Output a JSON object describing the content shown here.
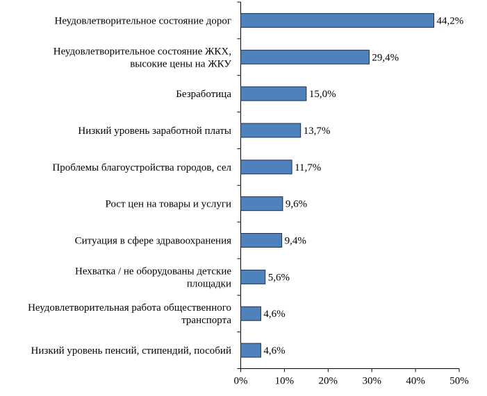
{
  "chart_data": {
    "type": "bar",
    "orientation": "horizontal",
    "categories": [
      [
        "Неудовлетворительное состояние дорог"
      ],
      [
        "Неудовлетворительное состояние ЖКХ,",
        "высокие цены на ЖКУ"
      ],
      [
        "Безработица"
      ],
      [
        "Низкий уровень заработной платы"
      ],
      [
        "Проблемы благоустройства городов, сел"
      ],
      [
        "Рост цен на товары и услуги"
      ],
      [
        "Ситуация в сфере здравоохранения"
      ],
      [
        "Нехватка / не оборудованы детские",
        "площадки"
      ],
      [
        "Неудовлетворительная работа общественного",
        "транспорта"
      ],
      [
        "Низкий уровень пенсий, стипендий, пособий"
      ]
    ],
    "values": [
      44.2,
      29.4,
      15.0,
      13.7,
      11.7,
      9.6,
      9.4,
      5.6,
      4.6,
      4.6
    ],
    "value_labels": [
      "44,2%",
      "29,4%",
      "15,0%",
      "13,7%",
      "11,7%",
      "9,6%",
      "9,4%",
      "5,6%",
      "4,6%",
      "4,6%"
    ],
    "xlim": [
      0,
      50
    ],
    "xticks": [
      0,
      10,
      20,
      30,
      40,
      50
    ],
    "xtick_labels": [
      "0%",
      "10%",
      "20%",
      "30%",
      "40%",
      "50%"
    ],
    "grid": false,
    "legend": "none",
    "colors": {
      "bar_fill": "#4f81bd",
      "bar_stroke": "#1f2f4a",
      "axis": "#000000"
    }
  }
}
